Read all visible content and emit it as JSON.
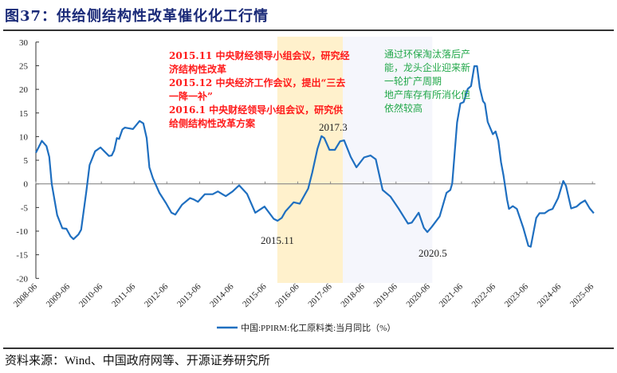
{
  "title": "图37：供给侧结构性改革催化化工行情",
  "source": "资料来源：Wind、中国政府网等、开源证券研究所",
  "annotations": {
    "red": [
      "2015.11 中央财经领导小组会议，研究经",
      "济结构性改革",
      "2015.12 中央经济工作会议，提出“三去",
      "一降一补”",
      "2016.1 中央财经领导小组会议，研究供",
      "给侧结构性改革方案"
    ],
    "green": [
      "通过环保淘汰落后产",
      "能，龙头企业迎来新",
      "一轮扩产周期",
      "地产库存有所消化但",
      "依然较高"
    ],
    "point_labels": [
      "2017.3",
      "2015.11",
      "2020.5"
    ]
  },
  "chart_data": {
    "type": "line",
    "title": "图37：供给侧结构性改革催化化工行情",
    "xlabel": "",
    "ylabel": "",
    "x_unit": "months since 2008-06",
    "ylim": [
      -20,
      30
    ],
    "yticks": [
      30,
      25,
      20,
      15,
      10,
      5,
      0,
      -5,
      -10,
      -15,
      -20
    ],
    "xticks": [
      "2008-06",
      "2009-06",
      "2010-06",
      "2011-06",
      "2012-06",
      "2013-06",
      "2014-06",
      "2015-06",
      "2016-06",
      "2017-06",
      "2018-06",
      "2019-06",
      "2020-06",
      "2021-06",
      "2022-06",
      "2023-06",
      "2024-06",
      "2025-06"
    ],
    "legend": {
      "position": "bottom",
      "entries": [
        "中国:PPIRM:化工原料类:当月同比（%）"
      ]
    },
    "colors": {
      "line": "#1f6fc0",
      "band1": "#fff1cc",
      "band2": "#f5f6fc",
      "red_text": "#ff1a1a",
      "green_text": "#22a84a"
    },
    "bands": [
      {
        "from": 88.5,
        "to": 112.5
      },
      {
        "from": 112.5,
        "to": 145.3
      }
    ],
    "series": [
      {
        "name": "中国:PPIRM:化工原料类:当月同比（%）",
        "points": [
          [
            0,
            6.6
          ],
          [
            2.2,
            9.1
          ],
          [
            3.9,
            8.0
          ],
          [
            4.9,
            5.7
          ],
          [
            5.8,
            0
          ],
          [
            7.8,
            -6.6
          ],
          [
            9.7,
            -9.4
          ],
          [
            11.2,
            -9.5
          ],
          [
            12.7,
            -11.1
          ],
          [
            13.8,
            -11.7
          ],
          [
            15.6,
            -10.7
          ],
          [
            16.6,
            -9.7
          ],
          [
            18.5,
            -1.6
          ],
          [
            19.7,
            4.0
          ],
          [
            21.7,
            6.9
          ],
          [
            23.7,
            7.7
          ],
          [
            26.8,
            5.9
          ],
          [
            27.8,
            6.0
          ],
          [
            28.7,
            7.1
          ],
          [
            29.7,
            9.7
          ],
          [
            30.5,
            9.5
          ],
          [
            31.7,
            11.5
          ],
          [
            32.6,
            11.9
          ],
          [
            35.6,
            11.6
          ],
          [
            38,
            13.3
          ],
          [
            39.4,
            12.8
          ],
          [
            40.6,
            9.7
          ],
          [
            41.6,
            3.5
          ],
          [
            42.9,
            1.2
          ],
          [
            45.3,
            -1.9
          ],
          [
            47.7,
            -4.1
          ],
          [
            49.7,
            -6.1
          ],
          [
            51.1,
            -6.5
          ],
          [
            53.6,
            -4.4
          ],
          [
            56.5,
            -3.0
          ],
          [
            57.9,
            -3.3
          ],
          [
            59.4,
            -3.8
          ],
          [
            61.9,
            -2.2
          ],
          [
            64.8,
            -2.2
          ],
          [
            66.7,
            -1.6
          ],
          [
            68.7,
            -2.3
          ],
          [
            69.6,
            -2.6
          ],
          [
            72.1,
            -1.6
          ],
          [
            74.5,
            -0.3
          ],
          [
            77.4,
            -2.1
          ],
          [
            80.4,
            -6.1
          ],
          [
            83.8,
            -4.8
          ],
          [
            87.2,
            -7.4
          ],
          [
            88.6,
            -7.8
          ],
          [
            90.1,
            -7.2
          ],
          [
            91.5,
            -5.8
          ],
          [
            94.5,
            -3.9
          ],
          [
            96.7,
            -4.2
          ],
          [
            99.8,
            -1.0
          ],
          [
            101.3,
            2.4
          ],
          [
            103.2,
            7.4
          ],
          [
            104.7,
            10.1
          ],
          [
            105.7,
            9.7
          ],
          [
            107.6,
            7.2
          ],
          [
            109.6,
            7.2
          ],
          [
            111.5,
            9.0
          ],
          [
            113,
            9.2
          ],
          [
            115.4,
            5.7
          ],
          [
            117.5,
            3.5
          ],
          [
            120.3,
            5.6
          ],
          [
            122.7,
            6.0
          ],
          [
            124.6,
            5.2
          ],
          [
            127.1,
            -1.3
          ],
          [
            130,
            -2.7
          ],
          [
            132.9,
            -5.2
          ],
          [
            136.4,
            -8.4
          ],
          [
            137.8,
            -8.2
          ],
          [
            140.3,
            -6.1
          ],
          [
            142.2,
            -9.3
          ],
          [
            143.5,
            -10.2
          ],
          [
            145.1,
            -9.1
          ],
          [
            148,
            -6.9
          ],
          [
            150.5,
            -1.9
          ],
          [
            151.9,
            -1.3
          ],
          [
            152.6,
            0.1
          ],
          [
            154.4,
            13.0
          ],
          [
            155.6,
            17.0
          ],
          [
            156.8,
            17.3
          ],
          [
            158.3,
            20.1
          ],
          [
            159.5,
            20.7
          ],
          [
            160.7,
            24.9
          ],
          [
            161.7,
            24.9
          ],
          [
            162.7,
            20.4
          ],
          [
            163.9,
            17.5
          ],
          [
            164.6,
            17.0
          ],
          [
            165.6,
            13.1
          ],
          [
            167.5,
            10.5
          ],
          [
            168.5,
            11.1
          ],
          [
            169.5,
            9.1
          ],
          [
            170.5,
            4.6
          ],
          [
            171.4,
            1.8
          ],
          [
            172.7,
            -3.3
          ],
          [
            173.4,
            -5.3
          ],
          [
            174.8,
            -4.7
          ],
          [
            176.3,
            -5.3
          ],
          [
            178.7,
            -9.4
          ],
          [
            180.5,
            -13.1
          ],
          [
            181.4,
            -13.3
          ],
          [
            183.4,
            -7.2
          ],
          [
            184.6,
            -6.2
          ],
          [
            186.5,
            -6.2
          ],
          [
            188,
            -5.6
          ],
          [
            189.4,
            -5.3
          ],
          [
            191.4,
            -3.0
          ],
          [
            193.3,
            0.6
          ],
          [
            194.3,
            -0.4
          ],
          [
            196.2,
            -5.2
          ],
          [
            198.2,
            -4.8
          ],
          [
            199.6,
            -4.1
          ],
          [
            201.3,
            -3.5
          ],
          [
            203,
            -5.2
          ],
          [
            204.5,
            -6.2
          ]
        ]
      }
    ]
  }
}
